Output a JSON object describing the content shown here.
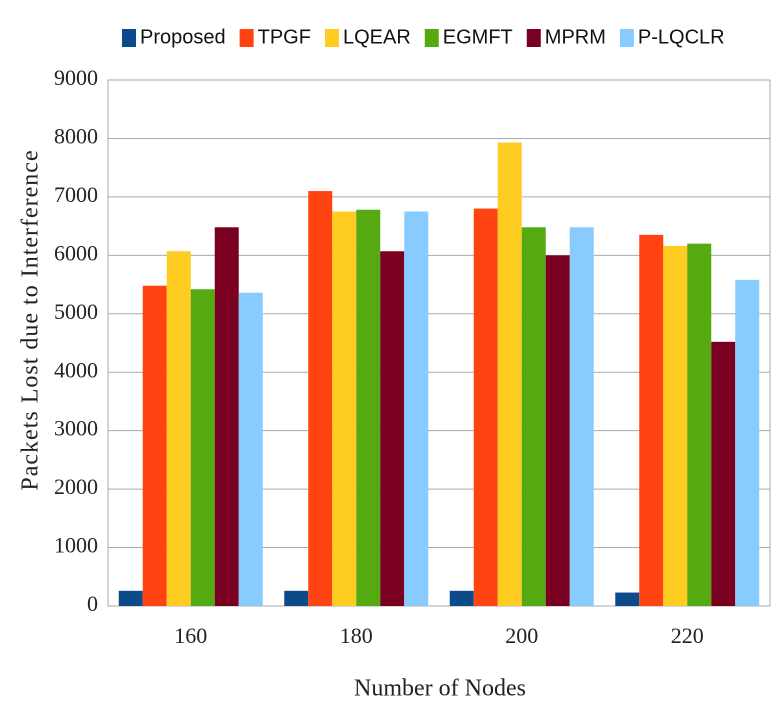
{
  "chart_data": {
    "type": "bar",
    "y_label": "Packets Lost due to Interference",
    "x_label": "Number of Nodes",
    "categories": [
      "160",
      "180",
      "200",
      "220"
    ],
    "series": [
      {
        "name": "Proposed",
        "color": "#0d4a8a",
        "values": [
          260,
          260,
          260,
          230
        ]
      },
      {
        "name": "TPGF",
        "color": "#ff4411",
        "values": [
          5480,
          7100,
          6800,
          6350
        ]
      },
      {
        "name": "LQEAR",
        "color": "#ffcc22",
        "values": [
          6070,
          6750,
          7930,
          6160
        ]
      },
      {
        "name": "EGMFT",
        "color": "#55aa11",
        "values": [
          5420,
          6780,
          6480,
          6200
        ]
      },
      {
        "name": "MPRM",
        "color": "#7a0022",
        "values": [
          6480,
          6070,
          6000,
          4520
        ]
      },
      {
        "name": "P-LQCLR",
        "color": "#88ccff",
        "values": [
          5360,
          6750,
          6480,
          5580
        ]
      }
    ],
    "ylim": [
      0,
      9000
    ],
    "yticks": [
      0,
      1000,
      2000,
      3000,
      4000,
      5000,
      6000,
      7000,
      8000,
      9000
    ],
    "grid": true,
    "legend": "top"
  }
}
